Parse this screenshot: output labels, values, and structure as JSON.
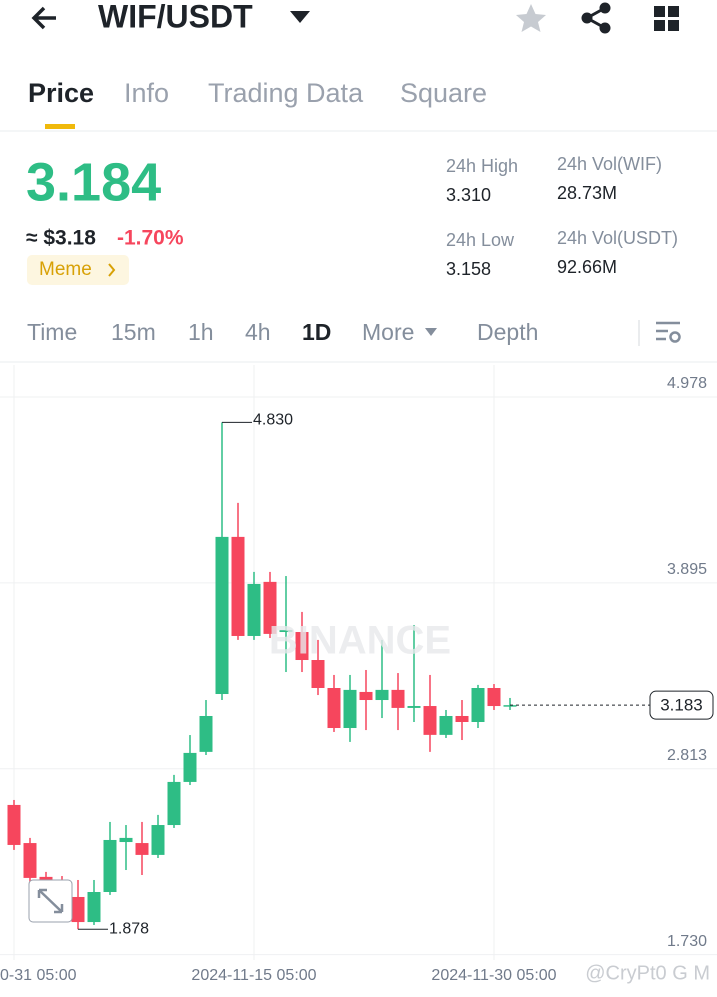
{
  "header": {
    "pair": "WIF/USDT"
  },
  "tabs": [
    "Price",
    "Info",
    "Trading Data",
    "Square"
  ],
  "price": {
    "last": "3.184",
    "usd": "≈ $3.18",
    "change": "-1.70%",
    "tag": "Meme"
  },
  "stats": [
    {
      "label": "24h High",
      "value": "3.310"
    },
    {
      "label": "24h Vol(WIF)",
      "value": "28.73M"
    },
    {
      "label": "24h Low",
      "value": "3.158"
    },
    {
      "label": "24h Vol(USDT)",
      "value": "92.66M"
    }
  ],
  "intervals": [
    "Time",
    "15m",
    "1h",
    "4h",
    "1D",
    "More",
    "Depth"
  ],
  "chart_data": {
    "type": "candlestick",
    "categories": [
      "0-31 05:00",
      null,
      null,
      null,
      null,
      null,
      null,
      null,
      null,
      null,
      null,
      null,
      null,
      null,
      null,
      "2024-11-15 05:00",
      null,
      null,
      null,
      null,
      null,
      null,
      null,
      null,
      null,
      null,
      null,
      null,
      null,
      null,
      "2024-11-30 05:00",
      null
    ],
    "open": [
      2.602,
      2.38,
      2.183,
      2.165,
      2.066,
      1.92,
      2.095,
      2.386,
      2.38,
      2.311,
      2.485,
      2.736,
      2.911,
      3.248,
      4.163,
      3.586,
      3.901,
      3.609,
      3.609,
      3.446,
      3.283,
      3.05,
      3.26,
      3.213,
      3.272,
      3.167,
      3.178,
      3.01,
      3.12,
      3.085,
      3.283,
      3.178
    ],
    "high": [
      2.631,
      2.41,
      2.212,
      2.188,
      2.165,
      2.165,
      2.503,
      2.485,
      2.503,
      2.544,
      2.777,
      3.009,
      3.213,
      4.83,
      4.361,
      3.959,
      3.959,
      3.935,
      3.726,
      3.563,
      3.359,
      3.359,
      3.388,
      3.563,
      3.37,
      3.65,
      3.359,
      3.155,
      3.213,
      3.301,
      3.306,
      3.225
    ],
    "low": [
      2.34,
      2.136,
      2.13,
      2.107,
      1.878,
      1.903,
      2.078,
      2.223,
      2.194,
      2.293,
      2.468,
      2.718,
      2.893,
      3.213,
      3.563,
      3.563,
      3.574,
      3.376,
      3.376,
      3.242,
      3.027,
      2.969,
      3.038,
      3.108,
      3.038,
      3.085,
      2.911,
      2.992,
      2.98,
      3.05,
      3.155,
      3.155
    ],
    "close": [
      2.369,
      2.177,
      2.153,
      2.136,
      1.92,
      2.095,
      2.398,
      2.41,
      2.311,
      2.485,
      2.736,
      2.905,
      3.12,
      4.163,
      3.586,
      3.889,
      3.598,
      3.621,
      3.446,
      3.283,
      3.05,
      3.272,
      3.213,
      3.272,
      3.167,
      3.178,
      3.01,
      3.12,
      3.085,
      3.283,
      3.178,
      3.183
    ],
    "up_color": "#2ebd85",
    "down_color": "#f6465d",
    "ylim": [
      1.699,
      5.164
    ],
    "yticks": [
      4.978,
      3.895,
      2.813,
      {
        "value": 1.73,
        "label": "1.730"
      }
    ],
    "grid": true,
    "last_price": 3.183,
    "high_label": {
      "value": 4.83,
      "label": "4.830"
    },
    "low_label": 1.878
  },
  "watermarks": [
    "BINANCE",
    "@CryPt0 G M"
  ]
}
